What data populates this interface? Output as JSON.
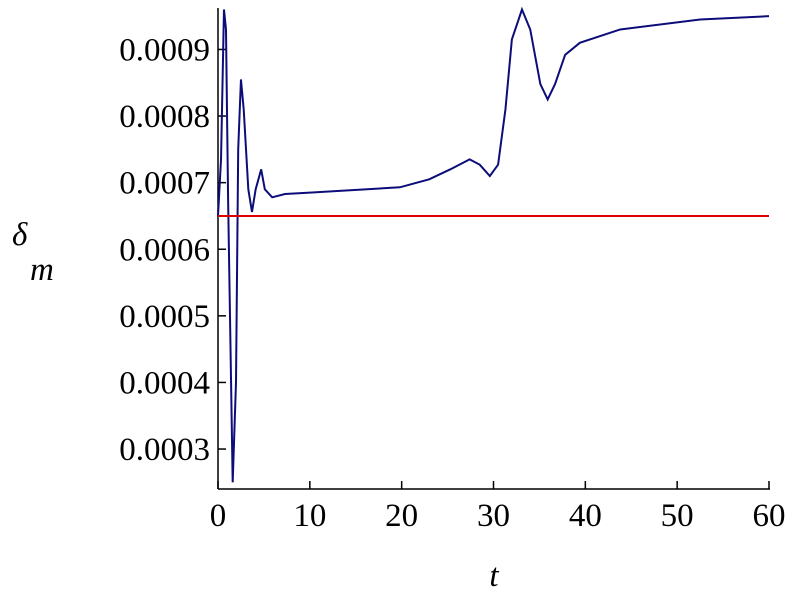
{
  "chart_data": {
    "type": "line",
    "xlabel": "t",
    "ylabel": "δ",
    "ylabel_subscript": "m",
    "xlim": [
      0,
      60
    ],
    "xticks": [
      0,
      10,
      20,
      30,
      40,
      50,
      60
    ],
    "ylim": [
      0.00024,
      0.00096
    ],
    "yticks": [
      0.0003,
      0.0004,
      0.0005,
      0.0006,
      0.0007,
      0.0008,
      0.0009
    ],
    "series": [
      {
        "color": "#0d0d7a",
        "x": [
          0,
          0.33,
          0.65,
          0.87,
          1.1,
          1.6,
          1.96,
          2.2,
          2.5,
          2.8,
          3.3,
          3.7,
          4.1,
          4.7,
          5.1,
          5.9,
          7.3,
          10,
          19.8,
          23,
          25.3,
          27.4,
          28.5,
          29.6,
          30.5,
          31.3,
          32,
          33.1,
          34,
          35.1,
          35.9,
          36.7,
          37.8,
          39.4,
          43.8,
          52.5,
          60
        ],
        "values": [
          0.00065,
          0.000735,
          0.00096,
          0.00093,
          0.000675,
          0.00025,
          0.0004,
          0.00075,
          0.000855,
          0.00081,
          0.00069,
          0.000656,
          0.00069,
          0.00072,
          0.00069,
          0.000678,
          0.000683,
          0.000685,
          0.000693,
          0.000705,
          0.00072,
          0.000735,
          0.000727,
          0.00071,
          0.000727,
          0.00081,
          0.000915,
          0.00096,
          0.00093,
          0.000848,
          0.000825,
          0.000848,
          0.000892,
          0.00091,
          0.00093,
          0.000945,
          0.00095
        ]
      },
      {
        "color": "#dd0000",
        "x": [
          0,
          60
        ],
        "values": [
          0.00065,
          0.00065
        ]
      }
    ]
  }
}
